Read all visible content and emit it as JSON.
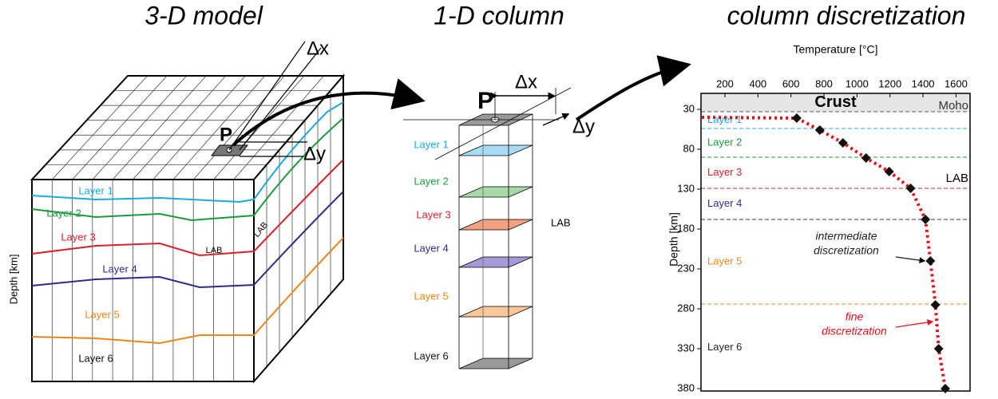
{
  "titles": [
    "3-D model",
    "1-D column",
    "column discretization"
  ],
  "model3d": {
    "point": "P",
    "dx": "Δx",
    "dy": "Δy",
    "layers": [
      "Layer 1",
      "Layer 2",
      "Layer 3",
      "Layer 4",
      "Layer 5",
      "Layer 6"
    ],
    "lab": "LAB",
    "depth_axis": "Depth [km]"
  },
  "column": {
    "point": "P",
    "dx": "Δx",
    "dy": "Δy",
    "layers": [
      "Layer 1",
      "Layer 2",
      "Layer 3",
      "Layer 4",
      "Layer 5",
      "Layer 6"
    ],
    "lab": "LAB"
  },
  "chart_data": {
    "type": "line",
    "x_label": "Temperature [°C]",
    "y_label": "Depth [km]",
    "xlim": [
      55,
      1685
    ],
    "ylim": [
      10,
      383
    ],
    "y_inverted": true,
    "xticks": [
      200,
      400,
      600,
      800,
      1000,
      1200,
      1400,
      1600
    ],
    "yticks": [
      30,
      80,
      130,
      180,
      230,
      280,
      330,
      380
    ],
    "crust_label": "Crust",
    "moho": {
      "label": "Moho",
      "depth": 33,
      "color": "#555555"
    },
    "lab": {
      "label": "LAB",
      "depth": 129
    },
    "layers": [
      {
        "name": "Layer 1",
        "color": "#1ba9e0",
        "bottom": 54
      },
      {
        "name": "Layer 2",
        "color": "#1a9a3c",
        "bottom": 90
      },
      {
        "name": "Layer 3",
        "color": "#d6202a",
        "bottom": 129
      },
      {
        "name": "Layer 4",
        "color": "#2e2a8c",
        "bottom": 168
      },
      {
        "name": "Layer 5",
        "color": "#e8871c",
        "bottom": 274
      },
      {
        "name": "Layer 6",
        "color": "#222222",
        "bottom": null
      }
    ],
    "line_color": "#e0121b",
    "surface": {
      "temperature": 60,
      "depth": 40
    },
    "nodes": {
      "temperature": [
        635,
        775,
        915,
        1055,
        1195,
        1325,
        1415,
        1445,
        1475,
        1495,
        1535
      ],
      "depth": [
        41,
        56,
        72,
        91,
        108,
        129,
        168,
        220,
        275,
        330,
        380
      ]
    },
    "annotations": [
      {
        "text": [
          "intermediate",
          "discretization"
        ],
        "color": "#222222"
      },
      {
        "text": [
          "fine",
          "discretization"
        ],
        "color": "#e0121b"
      }
    ]
  }
}
